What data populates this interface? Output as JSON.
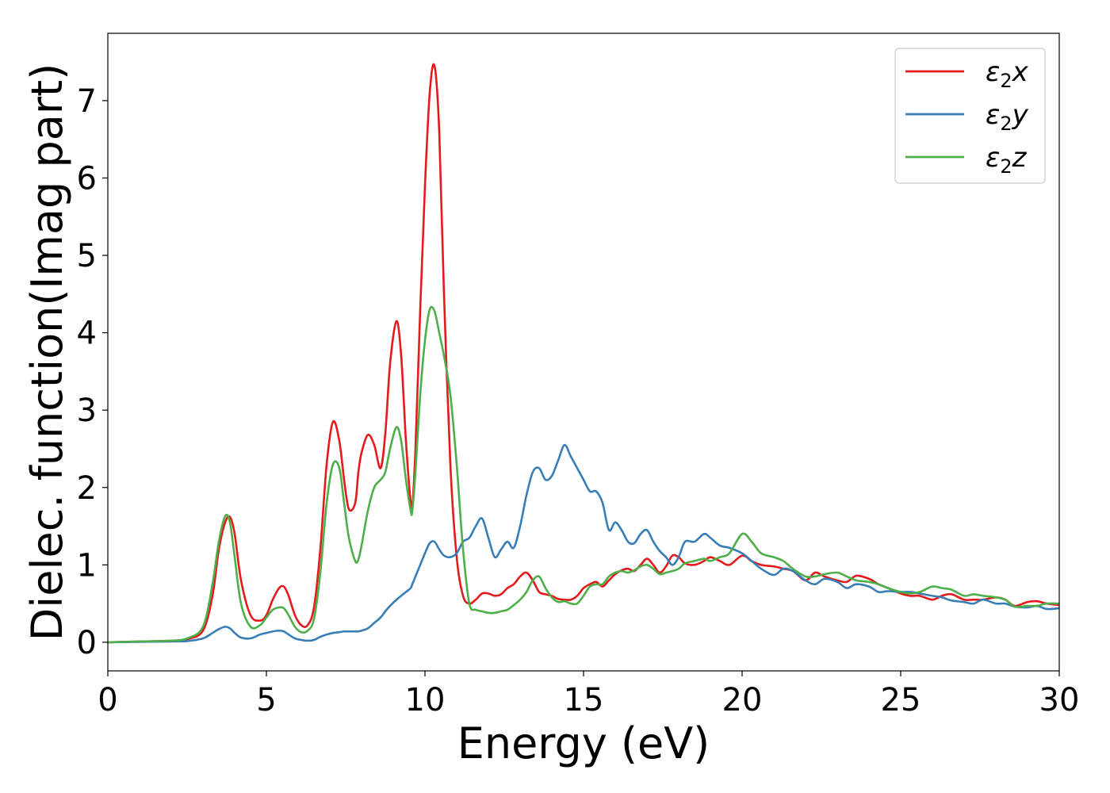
{
  "chart_data": {
    "type": "line",
    "title": "",
    "xlabel": "Energy (eV)",
    "ylabel": "Dielec. function(Imag part)",
    "xlim": [
      0,
      30
    ],
    "ylim": [
      -0.37,
      7.87
    ],
    "xticks": [
      0,
      5,
      10,
      15,
      20,
      25,
      30
    ],
    "xtick_labels": [
      "0",
      "5",
      "10",
      "15",
      "20",
      "25",
      "30"
    ],
    "yticks": [
      0,
      1,
      2,
      3,
      4,
      5,
      6,
      7
    ],
    "ytick_labels": [
      "0",
      "1",
      "2",
      "3",
      "4",
      "5",
      "6",
      "7"
    ],
    "grid": false,
    "legend": {
      "placement": "top-right"
    },
    "series": [
      {
        "name": "ε2x",
        "legend_main": "ε",
        "legend_sub": "2",
        "legend_var": "x",
        "color": "#e41a1c",
        "x": [
          0,
          1,
          2,
          2.5,
          3,
          3.3,
          3.5,
          3.7,
          3.85,
          4.0,
          4.2,
          4.5,
          4.8,
          5.0,
          5.2,
          5.4,
          5.55,
          5.7,
          5.9,
          6.1,
          6.3,
          6.5,
          6.7,
          6.9,
          7.1,
          7.3,
          7.45,
          7.6,
          7.8,
          7.9,
          8.0,
          8.2,
          8.4,
          8.6,
          8.75,
          8.9,
          9.1,
          9.25,
          9.4,
          9.55,
          9.6,
          9.7,
          9.85,
          10.0,
          10.15,
          10.3,
          10.45,
          10.6,
          10.8,
          11.0,
          11.2,
          11.4,
          11.6,
          11.8,
          12.0,
          12.2,
          12.4,
          12.6,
          12.8,
          13.0,
          13.2,
          13.4,
          13.6,
          13.8,
          14.0,
          14.2,
          14.4,
          14.6,
          14.8,
          15.0,
          15.2,
          15.4,
          15.6,
          15.8,
          16.0,
          16.2,
          16.4,
          16.6,
          16.8,
          17.0,
          17.2,
          17.4,
          17.6,
          17.8,
          18.0,
          18.2,
          18.5,
          18.8,
          19.0,
          19.3,
          19.6,
          20.0,
          20.3,
          20.6,
          21.0,
          21.3,
          21.6,
          22.0,
          22.3,
          22.6,
          23.0,
          23.3,
          23.6,
          24.0,
          24.3,
          24.6,
          25.0,
          25.3,
          25.6,
          26.0,
          26.3,
          26.6,
          27.0,
          27.3,
          27.6,
          28.0,
          28.3,
          28.6,
          29.0,
          29.3,
          29.6,
          30.0
        ],
        "y": [
          0,
          0.01,
          0.02,
          0.04,
          0.15,
          0.6,
          1.2,
          1.55,
          1.62,
          1.4,
          0.8,
          0.35,
          0.28,
          0.35,
          0.55,
          0.7,
          0.72,
          0.6,
          0.35,
          0.22,
          0.22,
          0.45,
          1.2,
          2.3,
          2.85,
          2.6,
          2.1,
          1.72,
          1.8,
          2.2,
          2.45,
          2.68,
          2.55,
          2.25,
          2.7,
          3.6,
          4.15,
          3.7,
          2.6,
          1.8,
          1.75,
          2.5,
          4.3,
          5.9,
          7.1,
          7.45,
          6.6,
          4.5,
          2.3,
          1.1,
          0.6,
          0.5,
          0.55,
          0.63,
          0.63,
          0.6,
          0.62,
          0.7,
          0.75,
          0.85,
          0.9,
          0.8,
          0.65,
          0.62,
          0.6,
          0.56,
          0.55,
          0.55,
          0.6,
          0.7,
          0.75,
          0.78,
          0.72,
          0.8,
          0.88,
          0.93,
          0.95,
          0.92,
          1.0,
          1.08,
          1.0,
          0.9,
          0.98,
          1.12,
          1.1,
          1.02,
          1.0,
          1.05,
          1.1,
          1.05,
          1.0,
          1.12,
          1.05,
          1.0,
          0.98,
          0.95,
          0.92,
          0.8,
          0.9,
          0.85,
          0.8,
          0.78,
          0.86,
          0.82,
          0.75,
          0.7,
          0.63,
          0.6,
          0.6,
          0.55,
          0.6,
          0.62,
          0.55,
          0.55,
          0.55,
          0.58,
          0.55,
          0.47,
          0.52,
          0.53,
          0.5,
          0.48
        ]
      },
      {
        "name": "ε2y",
        "legend_main": "ε",
        "legend_sub": "2",
        "legend_var": "y",
        "color": "#377eb8",
        "x": [
          0,
          1,
          2,
          2.5,
          3,
          3.3,
          3.5,
          3.7,
          3.85,
          4.0,
          4.2,
          4.5,
          4.8,
          5.0,
          5.2,
          5.4,
          5.55,
          5.7,
          5.9,
          6.1,
          6.3,
          6.5,
          6.7,
          6.9,
          7.1,
          7.3,
          7.45,
          7.6,
          7.8,
          7.9,
          8.0,
          8.2,
          8.4,
          8.6,
          8.75,
          8.9,
          9.1,
          9.25,
          9.4,
          9.55,
          9.6,
          9.7,
          9.85,
          10.0,
          10.15,
          10.3,
          10.45,
          10.6,
          10.8,
          11.0,
          11.2,
          11.4,
          11.6,
          11.8,
          12.0,
          12.2,
          12.4,
          12.6,
          12.8,
          13.0,
          13.2,
          13.4,
          13.6,
          13.8,
          14.0,
          14.2,
          14.4,
          14.6,
          14.8,
          15.0,
          15.2,
          15.4,
          15.6,
          15.8,
          16.0,
          16.2,
          16.4,
          16.6,
          16.8,
          17.0,
          17.2,
          17.4,
          17.6,
          17.8,
          18.0,
          18.2,
          18.5,
          18.8,
          19.0,
          19.3,
          19.6,
          20.0,
          20.3,
          20.6,
          21.0,
          21.3,
          21.6,
          22.0,
          22.3,
          22.6,
          23.0,
          23.3,
          23.6,
          24.0,
          24.3,
          24.6,
          25.0,
          25.3,
          25.6,
          26.0,
          26.3,
          26.6,
          27.0,
          27.3,
          27.6,
          28.0,
          28.3,
          28.6,
          29.0,
          29.3,
          29.6,
          30.0
        ],
        "y": [
          0,
          0.005,
          0.01,
          0.015,
          0.05,
          0.12,
          0.17,
          0.2,
          0.18,
          0.12,
          0.06,
          0.05,
          0.1,
          0.12,
          0.14,
          0.15,
          0.14,
          0.1,
          0.05,
          0.03,
          0.02,
          0.03,
          0.07,
          0.1,
          0.12,
          0.13,
          0.14,
          0.14,
          0.14,
          0.14,
          0.15,
          0.18,
          0.25,
          0.32,
          0.4,
          0.47,
          0.55,
          0.6,
          0.65,
          0.7,
          0.75,
          0.85,
          1.0,
          1.15,
          1.28,
          1.3,
          1.2,
          1.12,
          1.1,
          1.15,
          1.3,
          1.35,
          1.5,
          1.6,
          1.35,
          1.1,
          1.2,
          1.3,
          1.22,
          1.5,
          1.9,
          2.2,
          2.25,
          2.1,
          2.15,
          2.35,
          2.55,
          2.4,
          2.25,
          2.1,
          1.95,
          1.95,
          1.8,
          1.45,
          1.55,
          1.45,
          1.3,
          1.28,
          1.4,
          1.45,
          1.3,
          1.18,
          1.1,
          1.0,
          1.1,
          1.3,
          1.3,
          1.4,
          1.35,
          1.25,
          1.22,
          1.15,
          1.05,
          0.95,
          0.87,
          0.95,
          0.92,
          0.8,
          0.75,
          0.82,
          0.78,
          0.7,
          0.75,
          0.72,
          0.65,
          0.66,
          0.65,
          0.65,
          0.63,
          0.6,
          0.58,
          0.54,
          0.52,
          0.5,
          0.55,
          0.5,
          0.5,
          0.46,
          0.45,
          0.47,
          0.43,
          0.44
        ]
      },
      {
        "name": "ε2z",
        "legend_main": "ε",
        "legend_sub": "2",
        "legend_var": "z",
        "color": "#4daf4a",
        "x": [
          0,
          1,
          2,
          2.5,
          3,
          3.3,
          3.5,
          3.7,
          3.85,
          4.0,
          4.2,
          4.5,
          4.8,
          5.0,
          5.2,
          5.4,
          5.55,
          5.7,
          5.9,
          6.1,
          6.3,
          6.5,
          6.7,
          6.9,
          7.1,
          7.3,
          7.45,
          7.6,
          7.8,
          7.9,
          8.0,
          8.2,
          8.4,
          8.6,
          8.75,
          8.9,
          9.1,
          9.25,
          9.4,
          9.55,
          9.6,
          9.7,
          9.85,
          10.0,
          10.15,
          10.3,
          10.45,
          10.6,
          10.8,
          11.0,
          11.2,
          11.4,
          11.6,
          11.8,
          12.0,
          12.2,
          12.4,
          12.6,
          12.8,
          13.0,
          13.2,
          13.4,
          13.6,
          13.8,
          14.0,
          14.2,
          14.4,
          14.6,
          14.8,
          15.0,
          15.2,
          15.4,
          15.6,
          15.8,
          16.0,
          16.2,
          16.4,
          16.6,
          16.8,
          17.0,
          17.2,
          17.4,
          17.6,
          17.8,
          18.0,
          18.2,
          18.5,
          18.8,
          19.0,
          19.3,
          19.6,
          20.0,
          20.3,
          20.6,
          21.0,
          21.3,
          21.6,
          22.0,
          22.3,
          22.6,
          23.0,
          23.3,
          23.6,
          24.0,
          24.3,
          24.6,
          25.0,
          25.3,
          25.6,
          26.0,
          26.3,
          26.6,
          27.0,
          27.3,
          27.6,
          28.0,
          28.3,
          28.6,
          29.0,
          29.3,
          29.6,
          30.0
        ],
        "y": [
          0,
          0.01,
          0.02,
          0.05,
          0.2,
          0.75,
          1.3,
          1.63,
          1.55,
          1.1,
          0.5,
          0.2,
          0.22,
          0.32,
          0.42,
          0.45,
          0.44,
          0.35,
          0.2,
          0.13,
          0.15,
          0.3,
          0.9,
          1.8,
          2.3,
          2.25,
          1.8,
          1.35,
          1.05,
          1.07,
          1.25,
          1.7,
          2.0,
          2.1,
          2.2,
          2.5,
          2.78,
          2.6,
          2.1,
          1.7,
          1.7,
          2.2,
          3.2,
          3.9,
          4.3,
          4.28,
          4.0,
          3.7,
          3.2,
          2.3,
          1.2,
          0.5,
          0.42,
          0.4,
          0.38,
          0.38,
          0.4,
          0.42,
          0.48,
          0.55,
          0.65,
          0.8,
          0.85,
          0.7,
          0.58,
          0.52,
          0.53,
          0.5,
          0.5,
          0.6,
          0.72,
          0.75,
          0.75,
          0.85,
          0.9,
          0.92,
          0.9,
          0.93,
          0.98,
          1.0,
          0.95,
          0.88,
          0.9,
          0.92,
          0.95,
          1.02,
          1.05,
          1.08,
          1.05,
          1.1,
          1.15,
          1.4,
          1.3,
          1.15,
          1.1,
          1.05,
          0.95,
          0.85,
          0.85,
          0.88,
          0.9,
          0.85,
          0.8,
          0.78,
          0.75,
          0.7,
          0.65,
          0.63,
          0.65,
          0.72,
          0.7,
          0.68,
          0.6,
          0.62,
          0.6,
          0.58,
          0.55,
          0.46,
          0.47,
          0.47,
          0.5,
          0.5
        ]
      }
    ]
  }
}
